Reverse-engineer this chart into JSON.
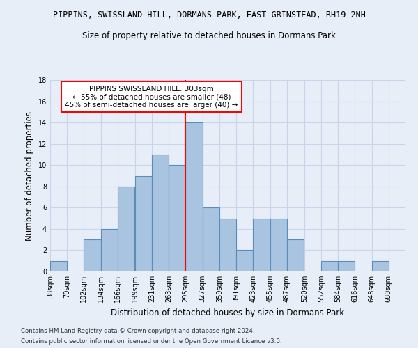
{
  "title1": "PIPPINS, SWISSLAND HILL, DORMANS PARK, EAST GRINSTEAD, RH19 2NH",
  "title2": "Size of property relative to detached houses in Dormans Park",
  "xlabel": "Distribution of detached houses by size in Dormans Park",
  "ylabel": "Number of detached properties",
  "bin_labels": [
    "38sqm",
    "70sqm",
    "102sqm",
    "134sqm",
    "166sqm",
    "199sqm",
    "231sqm",
    "263sqm",
    "295sqm",
    "327sqm",
    "359sqm",
    "391sqm",
    "423sqm",
    "455sqm",
    "487sqm",
    "520sqm",
    "552sqm",
    "584sqm",
    "616sqm",
    "648sqm",
    "680sqm"
  ],
  "bin_edges": [
    38,
    70,
    102,
    134,
    166,
    199,
    231,
    263,
    295,
    327,
    359,
    391,
    423,
    455,
    487,
    520,
    552,
    584,
    616,
    648,
    680
  ],
  "bar_heights": [
    1,
    0,
    3,
    4,
    8,
    9,
    11,
    10,
    14,
    6,
    5,
    2,
    5,
    5,
    3,
    0,
    1,
    1,
    0,
    1
  ],
  "bar_color": "#a8c4e0",
  "bar_edge_color": "#5b8db8",
  "vline_x": 295,
  "vline_color": "red",
  "annotation_title": "PIPPINS SWISSLAND HILL: 303sqm",
  "annotation_line1": "← 55% of detached houses are smaller (48)",
  "annotation_line2": "45% of semi-detached houses are larger (40) →",
  "annotation_box_color": "white",
  "annotation_box_edge_color": "red",
  "ylim": [
    0,
    18
  ],
  "yticks": [
    0,
    2,
    4,
    6,
    8,
    10,
    12,
    14,
    16,
    18
  ],
  "footnote1": "Contains HM Land Registry data © Crown copyright and database right 2024.",
  "footnote2": "Contains public sector information licensed under the Open Government Licence v3.0.",
  "background_color": "#e8eef8",
  "grid_color": "#c8d4e8"
}
